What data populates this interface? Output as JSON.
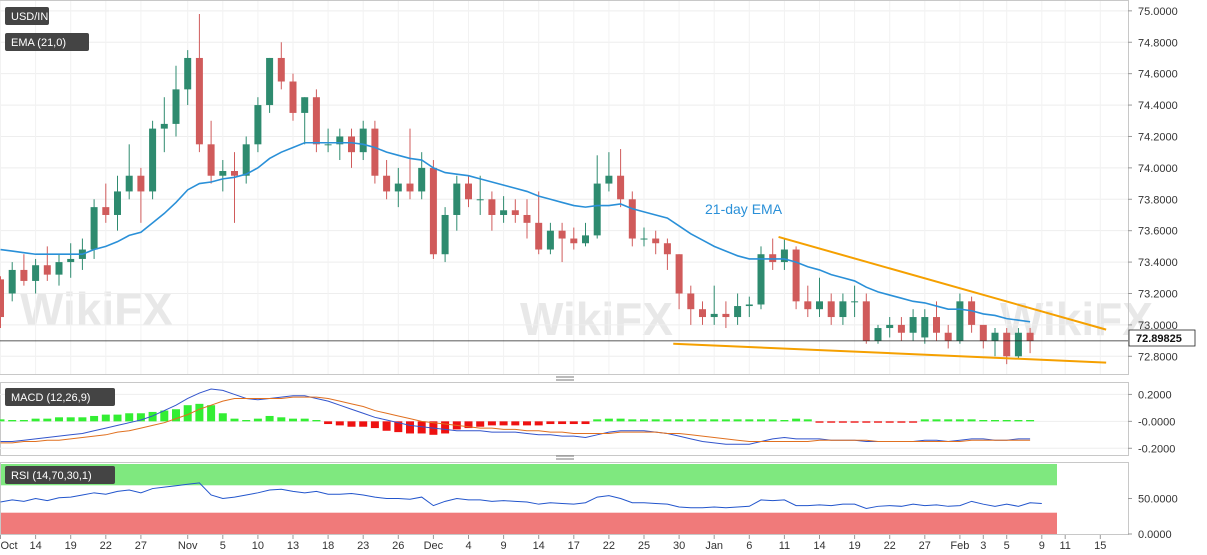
{
  "chart_data": [
    {
      "type": "candlestick",
      "title": "USD/INR",
      "indicator_label": "EMA (21,0)",
      "annotation": "21-day EMA",
      "last_price": "72.89825",
      "ylim": [
        72.7,
        75.05
      ],
      "y_ticks": [
        "75.0000",
        "74.8000",
        "74.6000",
        "74.4000",
        "74.2000",
        "74.0000",
        "73.8000",
        "73.6000",
        "73.4000",
        "73.2000",
        "73.0000",
        "72.8000"
      ],
      "y_tick_values": [
        75.0,
        74.8,
        74.6,
        74.4,
        74.2,
        74.0,
        73.8,
        73.6,
        73.4,
        73.2,
        73.0,
        72.8
      ],
      "x_ticks": [
        "Oct",
        "14",
        "19",
        "22",
        "27",
        "Nov",
        "5",
        "10",
        "13",
        "18",
        "23",
        "26",
        "Dec",
        "4",
        "9",
        "14",
        "17",
        "22",
        "25",
        "30",
        "Jan",
        "6",
        "11",
        "14",
        "19",
        "22",
        "27",
        "Feb",
        "3",
        "5",
        "9",
        "11",
        "15"
      ],
      "x_tick_index": [
        0,
        3,
        6,
        9,
        12,
        16,
        19,
        22,
        25,
        28,
        31,
        34,
        37,
        40,
        43,
        46,
        49,
        52,
        55,
        58,
        61,
        64,
        67,
        70,
        73,
        76,
        79,
        82,
        84,
        86,
        89,
        91,
        94
      ],
      "candles": [
        {
          "o": 73.29,
          "h": 73.31,
          "l": 72.98,
          "c": 73.05
        },
        {
          "o": 73.2,
          "h": 73.4,
          "l": 73.15,
          "c": 73.35
        },
        {
          "o": 73.35,
          "h": 73.45,
          "l": 73.25,
          "c": 73.28
        },
        {
          "o": 73.28,
          "h": 73.42,
          "l": 73.2,
          "c": 73.38
        },
        {
          "o": 73.38,
          "h": 73.5,
          "l": 73.28,
          "c": 73.32
        },
        {
          "o": 73.32,
          "h": 73.45,
          "l": 73.25,
          "c": 73.4
        },
        {
          "o": 73.4,
          "h": 73.52,
          "l": 73.3,
          "c": 73.42
        },
        {
          "o": 73.42,
          "h": 73.55,
          "l": 73.35,
          "c": 73.48
        },
        {
          "o": 73.48,
          "h": 73.8,
          "l": 73.42,
          "c": 73.75
        },
        {
          "o": 73.75,
          "h": 73.9,
          "l": 73.65,
          "c": 73.7
        },
        {
          "o": 73.7,
          "h": 73.95,
          "l": 73.6,
          "c": 73.85
        },
        {
          "o": 73.85,
          "h": 74.15,
          "l": 73.8,
          "c": 73.95
        },
        {
          "o": 73.95,
          "h": 74.0,
          "l": 73.65,
          "c": 73.85
        },
        {
          "o": 73.85,
          "h": 74.3,
          "l": 73.8,
          "c": 74.25
        },
        {
          "o": 74.25,
          "h": 74.45,
          "l": 74.1,
          "c": 74.28
        },
        {
          "o": 74.28,
          "h": 74.65,
          "l": 74.2,
          "c": 74.5
        },
        {
          "o": 74.5,
          "h": 74.75,
          "l": 74.4,
          "c": 74.7
        },
        {
          "o": 74.7,
          "h": 74.98,
          "l": 74.1,
          "c": 74.15
        },
        {
          "o": 74.15,
          "h": 74.3,
          "l": 73.9,
          "c": 73.95
        },
        {
          "o": 73.95,
          "h": 74.05,
          "l": 73.85,
          "c": 73.98
        },
        {
          "o": 73.98,
          "h": 74.1,
          "l": 73.65,
          "c": 73.95
        },
        {
          "o": 73.95,
          "h": 74.2,
          "l": 73.9,
          "c": 74.15
        },
        {
          "o": 74.15,
          "h": 74.45,
          "l": 74.1,
          "c": 74.4
        },
        {
          "o": 74.4,
          "h": 74.7,
          "l": 74.35,
          "c": 74.7
        },
        {
          "o": 74.7,
          "h": 74.8,
          "l": 74.5,
          "c": 74.55
        },
        {
          "o": 74.55,
          "h": 74.6,
          "l": 74.3,
          "c": 74.35
        },
        {
          "o": 74.35,
          "h": 74.45,
          "l": 74.15,
          "c": 74.45
        },
        {
          "o": 74.45,
          "h": 74.5,
          "l": 74.1,
          "c": 74.15
        },
        {
          "o": 74.15,
          "h": 74.25,
          "l": 74.1,
          "c": 74.15
        },
        {
          "o": 74.15,
          "h": 74.25,
          "l": 74.05,
          "c": 74.2
        },
        {
          "o": 74.2,
          "h": 74.25,
          "l": 74.0,
          "c": 74.1
        },
        {
          "o": 74.1,
          "h": 74.3,
          "l": 74.05,
          "c": 74.25
        },
        {
          "o": 74.25,
          "h": 74.3,
          "l": 73.9,
          "c": 73.95
        },
        {
          "o": 73.95,
          "h": 74.05,
          "l": 73.8,
          "c": 73.85
        },
        {
          "o": 73.85,
          "h": 74.0,
          "l": 73.75,
          "c": 73.9
        },
        {
          "o": 73.9,
          "h": 74.25,
          "l": 73.8,
          "c": 73.85
        },
        {
          "o": 73.85,
          "h": 74.1,
          "l": 73.8,
          "c": 74.0
        },
        {
          "o": 74.0,
          "h": 74.05,
          "l": 73.42,
          "c": 73.45
        },
        {
          "o": 73.45,
          "h": 73.75,
          "l": 73.4,
          "c": 73.7
        },
        {
          "o": 73.7,
          "h": 73.95,
          "l": 73.6,
          "c": 73.9
        },
        {
          "o": 73.9,
          "h": 73.95,
          "l": 73.75,
          "c": 73.8
        },
        {
          "o": 73.8,
          "h": 73.95,
          "l": 73.7,
          "c": 73.8
        },
        {
          "o": 73.8,
          "h": 73.85,
          "l": 73.6,
          "c": 73.7
        },
        {
          "o": 73.7,
          "h": 73.82,
          "l": 73.65,
          "c": 73.73
        },
        {
          "o": 73.73,
          "h": 73.8,
          "l": 73.65,
          "c": 73.7
        },
        {
          "o": 73.7,
          "h": 73.8,
          "l": 73.55,
          "c": 73.65
        },
        {
          "o": 73.65,
          "h": 73.85,
          "l": 73.45,
          "c": 73.48
        },
        {
          "o": 73.48,
          "h": 73.65,
          "l": 73.45,
          "c": 73.6
        },
        {
          "o": 73.6,
          "h": 73.65,
          "l": 73.4,
          "c": 73.55
        },
        {
          "o": 73.55,
          "h": 73.62,
          "l": 73.48,
          "c": 73.52
        },
        {
          "o": 73.52,
          "h": 73.65,
          "l": 73.5,
          "c": 73.57
        },
        {
          "o": 73.57,
          "h": 74.08,
          "l": 73.55,
          "c": 73.9
        },
        {
          "o": 73.9,
          "h": 74.1,
          "l": 73.85,
          "c": 73.95
        },
        {
          "o": 73.95,
          "h": 74.12,
          "l": 73.75,
          "c": 73.8
        },
        {
          "o": 73.8,
          "h": 73.85,
          "l": 73.5,
          "c": 73.55
        },
        {
          "o": 73.55,
          "h": 73.62,
          "l": 73.5,
          "c": 73.55
        },
        {
          "o": 73.55,
          "h": 73.6,
          "l": 73.45,
          "c": 73.52
        },
        {
          "o": 73.52,
          "h": 73.55,
          "l": 73.35,
          "c": 73.45
        },
        {
          "o": 73.45,
          "h": 73.45,
          "l": 73.1,
          "c": 73.2
        },
        {
          "o": 73.2,
          "h": 73.25,
          "l": 73.0,
          "c": 73.1
        },
        {
          "o": 73.1,
          "h": 73.15,
          "l": 73.0,
          "c": 73.05
        },
        {
          "o": 73.05,
          "h": 73.25,
          "l": 73.0,
          "c": 73.07
        },
        {
          "o": 73.07,
          "h": 73.15,
          "l": 72.98,
          "c": 73.05
        },
        {
          "o": 73.05,
          "h": 73.2,
          "l": 73.0,
          "c": 73.12
        },
        {
          "o": 73.12,
          "h": 73.18,
          "l": 73.05,
          "c": 73.13
        },
        {
          "o": 73.13,
          "h": 73.5,
          "l": 73.1,
          "c": 73.45
        },
        {
          "o": 73.45,
          "h": 73.55,
          "l": 73.35,
          "c": 73.4
        },
        {
          "o": 73.4,
          "h": 73.55,
          "l": 73.35,
          "c": 73.48
        },
        {
          "o": 73.48,
          "h": 73.5,
          "l": 73.1,
          "c": 73.15
        },
        {
          "o": 73.15,
          "h": 73.25,
          "l": 73.05,
          "c": 73.1
        },
        {
          "o": 73.1,
          "h": 73.3,
          "l": 73.05,
          "c": 73.15
        },
        {
          "o": 73.15,
          "h": 73.2,
          "l": 73.0,
          "c": 73.05
        },
        {
          "o": 73.05,
          "h": 73.2,
          "l": 73.0,
          "c": 73.15
        },
        {
          "o": 73.15,
          "h": 73.25,
          "l": 73.05,
          "c": 73.15
        },
        {
          "o": 73.15,
          "h": 73.2,
          "l": 72.88,
          "c": 72.9
        },
        {
          "o": 72.9,
          "h": 73.0,
          "l": 72.88,
          "c": 72.98
        },
        {
          "o": 72.98,
          "h": 73.05,
          "l": 72.92,
          "c": 73.0
        },
        {
          "o": 73.0,
          "h": 73.05,
          "l": 72.9,
          "c": 72.95
        },
        {
          "o": 72.95,
          "h": 73.1,
          "l": 72.9,
          "c": 73.05
        },
        {
          "o": 72.92,
          "h": 73.1,
          "l": 72.88,
          "c": 73.05
        },
        {
          "o": 73.05,
          "h": 73.15,
          "l": 72.9,
          "c": 72.95
        },
        {
          "o": 72.95,
          "h": 73.0,
          "l": 72.85,
          "c": 72.9
        },
        {
          "o": 72.9,
          "h": 73.2,
          "l": 72.88,
          "c": 73.15
        },
        {
          "o": 73.15,
          "h": 73.18,
          "l": 72.95,
          "c": 73.0
        },
        {
          "o": 73.0,
          "h": 73.0,
          "l": 72.85,
          "c": 72.9
        },
        {
          "o": 72.9,
          "h": 72.98,
          "l": 72.8,
          "c": 72.95
        },
        {
          "o": 72.95,
          "h": 72.98,
          "l": 72.75,
          "c": 72.8
        },
        {
          "o": 72.8,
          "h": 72.98,
          "l": 72.78,
          "c": 72.95
        },
        {
          "o": 72.95,
          "h": 72.98,
          "l": 72.82,
          "c": 72.9
        }
      ],
      "ema": [
        73.48,
        73.47,
        73.46,
        73.45,
        73.45,
        73.45,
        73.45,
        73.45,
        73.48,
        73.5,
        73.53,
        73.57,
        73.59,
        73.65,
        73.71,
        73.78,
        73.86,
        73.9,
        73.91,
        73.93,
        73.94,
        73.96,
        74.0,
        74.06,
        74.1,
        74.13,
        74.16,
        74.16,
        74.16,
        74.16,
        74.16,
        74.15,
        74.13,
        74.1,
        74.08,
        74.06,
        74.05,
        74.0,
        73.97,
        73.96,
        73.95,
        73.93,
        73.91,
        73.89,
        73.87,
        73.85,
        73.82,
        73.8,
        73.78,
        73.76,
        73.75,
        73.76,
        73.76,
        73.77,
        73.74,
        73.72,
        73.7,
        73.68,
        73.63,
        73.58,
        73.54,
        73.5,
        73.47,
        73.44,
        73.42,
        73.42,
        73.42,
        73.42,
        73.4,
        73.37,
        73.35,
        73.32,
        73.3,
        73.28,
        73.24,
        73.21,
        73.19,
        73.17,
        73.15,
        73.14,
        73.12,
        73.1,
        73.1,
        73.09,
        73.07,
        73.06,
        73.04,
        73.03,
        73.02
      ],
      "trendlines": [
        {
          "from": [
            66.5,
            73.56
          ],
          "to": [
            94.5,
            72.97
          ]
        },
        {
          "from": [
            57.5,
            72.88
          ],
          "to": [
            94.5,
            72.76
          ]
        }
      ]
    },
    {
      "type": "macd",
      "indicator_label": "MACD (12,26,9)",
      "ylim": [
        -0.25,
        0.27
      ],
      "y_ticks": [
        "0.2000",
        "-0.0000",
        "-0.2000"
      ],
      "y_tick_values": [
        0.2,
        0.0,
        -0.2
      ],
      "histogram": [
        0.0,
        0.01,
        0.01,
        0.02,
        0.02,
        0.03,
        0.03,
        0.03,
        0.04,
        0.05,
        0.05,
        0.06,
        0.06,
        0.07,
        0.08,
        0.09,
        0.12,
        0.13,
        0.12,
        0.06,
        0.02,
        0.01,
        0.02,
        0.04,
        0.03,
        0.02,
        0.02,
        0.01,
        -0.02,
        -0.03,
        -0.04,
        -0.04,
        -0.05,
        -0.07,
        -0.08,
        -0.09,
        -0.09,
        -0.1,
        -0.09,
        -0.06,
        -0.05,
        -0.04,
        -0.03,
        -0.03,
        -0.03,
        -0.03,
        -0.03,
        -0.02,
        -0.02,
        -0.02,
        -0.02,
        0.0,
        0.02,
        0.02,
        0.0,
        0.0,
        0.0,
        0.0,
        0.0,
        0.0,
        0.0,
        0.0,
        0.0,
        0.0,
        0.0,
        0.0,
        0.0,
        0.01,
        0.02,
        0.0,
        -0.01,
        -0.01,
        -0.01,
        -0.01,
        -0.01,
        -0.01,
        -0.01,
        -0.01,
        -0.01,
        0.0,
        0.0,
        0.0,
        0.0,
        0.0,
        0.01,
        0.01,
        0.01,
        0.01,
        0.01
      ],
      "macd": [
        -0.15,
        -0.15,
        -0.14,
        -0.13,
        -0.12,
        -0.11,
        -0.1,
        -0.09,
        -0.07,
        -0.05,
        -0.03,
        -0.01,
        0.01,
        0.04,
        0.08,
        0.12,
        0.17,
        0.21,
        0.24,
        0.23,
        0.2,
        0.17,
        0.16,
        0.17,
        0.18,
        0.19,
        0.19,
        0.17,
        0.15,
        0.12,
        0.09,
        0.06,
        0.03,
        0.01,
        -0.01,
        -0.03,
        -0.04,
        -0.05,
        -0.06,
        -0.07,
        -0.07,
        -0.07,
        -0.08,
        -0.08,
        -0.08,
        -0.09,
        -0.1,
        -0.1,
        -0.11,
        -0.11,
        -0.12,
        -0.1,
        -0.08,
        -0.07,
        -0.07,
        -0.07,
        -0.08,
        -0.09,
        -0.11,
        -0.13,
        -0.15,
        -0.16,
        -0.17,
        -0.17,
        -0.17,
        -0.15,
        -0.13,
        -0.12,
        -0.13,
        -0.13,
        -0.13,
        -0.14,
        -0.14,
        -0.14,
        -0.15,
        -0.15,
        -0.15,
        -0.15,
        -0.15,
        -0.14,
        -0.14,
        -0.15,
        -0.14,
        -0.13,
        -0.13,
        -0.14,
        -0.14,
        -0.13,
        -0.13
      ],
      "signal": [
        -0.16,
        -0.16,
        -0.15,
        -0.15,
        -0.14,
        -0.14,
        -0.13,
        -0.12,
        -0.11,
        -0.1,
        -0.08,
        -0.07,
        -0.05,
        -0.03,
        -0.01,
        0.02,
        0.05,
        0.09,
        0.12,
        0.15,
        0.17,
        0.17,
        0.17,
        0.17,
        0.17,
        0.18,
        0.18,
        0.18,
        0.17,
        0.15,
        0.13,
        0.11,
        0.08,
        0.06,
        0.04,
        0.02,
        0.0,
        -0.01,
        -0.02,
        -0.03,
        -0.04,
        -0.05,
        -0.05,
        -0.06,
        -0.06,
        -0.07,
        -0.07,
        -0.08,
        -0.08,
        -0.09,
        -0.09,
        -0.09,
        -0.09,
        -0.08,
        -0.08,
        -0.08,
        -0.08,
        -0.09,
        -0.09,
        -0.1,
        -0.11,
        -0.12,
        -0.13,
        -0.14,
        -0.15,
        -0.15,
        -0.15,
        -0.15,
        -0.15,
        -0.15,
        -0.14,
        -0.14,
        -0.14,
        -0.14,
        -0.14,
        -0.15,
        -0.15,
        -0.15,
        -0.15,
        -0.15,
        -0.15,
        -0.15,
        -0.15,
        -0.14,
        -0.14,
        -0.14,
        -0.14,
        -0.14,
        -0.14
      ]
    },
    {
      "type": "rsi",
      "indicator_label": "RSI (14,70,30,1)",
      "ylim": [
        0,
        100
      ],
      "y_ticks": [
        "50.0000",
        "0.0000"
      ],
      "y_tick_values": [
        50,
        0
      ],
      "overbought": 70,
      "oversold": 30,
      "values": [
        45,
        48,
        46,
        50,
        47,
        51,
        52,
        55,
        58,
        56,
        60,
        62,
        58,
        64,
        66,
        68,
        70,
        72,
        55,
        50,
        52,
        55,
        58,
        62,
        63,
        60,
        58,
        60,
        56,
        56,
        57,
        55,
        52,
        50,
        50,
        49,
        52,
        40,
        46,
        50,
        48,
        48,
        46,
        47,
        46,
        45,
        42,
        44,
        43,
        42,
        44,
        52,
        54,
        50,
        44,
        44,
        43,
        42,
        38,
        37,
        37,
        38,
        37,
        38,
        39,
        48,
        47,
        48,
        40,
        40,
        41,
        40,
        42,
        42,
        36,
        39,
        40,
        39,
        42,
        40,
        41,
        39,
        40,
        46,
        42,
        39,
        42,
        39,
        44,
        43
      ]
    },
    {
      "watermark": "WikiFX"
    }
  ],
  "colors": {
    "up": "#2e8b6f",
    "down": "#d05b5b",
    "ema": "#2a90d8",
    "trendline": "#f5a000",
    "macd": "#3355cc",
    "signal": "#e07020",
    "hist_pos": "#33ee33",
    "hist_neg": "#ee1111",
    "rsi": "#2255cc",
    "ob_zone": "#7fe87f",
    "os_zone": "#f07a7a",
    "label_box": "#444444"
  }
}
